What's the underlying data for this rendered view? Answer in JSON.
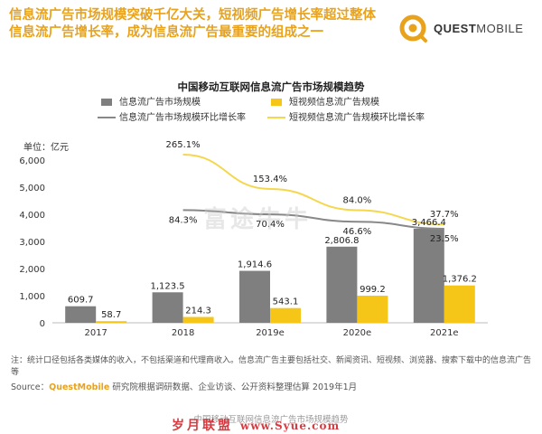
{
  "header": {
    "headline_line1": "信息流广告市场规模突破千亿大关，短视频广告增长率超过整体",
    "headline_line2": "信息流广告增长率，成为信息流广告最重要的组成之一",
    "brand_text_bold": "QUEST",
    "brand_text": "MOBILE"
  },
  "colors": {
    "bar_info": "#7f7f7f",
    "bar_short": "#f5c518",
    "line_info": "#888888",
    "line_short": "#f5d74e",
    "accent": "#e8a21c"
  },
  "chart_data": {
    "type": "bar",
    "title": "中国移动互联网信息流广告市场规模趋势",
    "unit_label": "单位：亿元",
    "categories": [
      "2017",
      "2018",
      "2019e",
      "2020e",
      "2021e"
    ],
    "ylim": [
      0,
      6000
    ],
    "yticks": [
      "0",
      "1,000",
      "2,000",
      "3,000",
      "4,000",
      "5,000",
      "6,000"
    ],
    "ytick_values": [
      0,
      1000,
      2000,
      3000,
      4000,
      5000,
      6000
    ],
    "series": [
      {
        "name": "信息流广告市场规模",
        "kind": "bar",
        "values": [
          609.7,
          1123.5,
          1914.6,
          2806.8,
          3466.4
        ],
        "labels": [
          "609.7",
          "1,123.5",
          "1,914.6",
          "2,806.8",
          "3,466.4"
        ]
      },
      {
        "name": "短视频信息流广告规模",
        "kind": "bar",
        "values": [
          58.7,
          214.3,
          543.1,
          999.2,
          1376.2
        ],
        "labels": [
          "58.7",
          "214.3",
          "543.1",
          "999.2",
          "1,376.2"
        ]
      },
      {
        "name": "信息流广告市场规模环比增长率",
        "kind": "line",
        "values": [
          null,
          84.3,
          70.4,
          46.6,
          23.5
        ],
        "labels": [
          "",
          "84.3%",
          "70.4%",
          "46.6%",
          "23.5%"
        ]
      },
      {
        "name": "短视频信息流广告规模环比增长率",
        "kind": "line",
        "values": [
          null,
          265.1,
          153.4,
          84.0,
          37.7
        ],
        "labels": [
          "",
          "265.1%",
          "153.4%",
          "84.0%",
          "37.7%"
        ]
      }
    ],
    "legend_position": "top",
    "grid": false
  },
  "footer": {
    "note": "注：统计口径包括各类媒体的收入，不包括渠道和代理商收入。信息流广告主要包括社交、新闻资讯、短视频、浏览器、搜索下载中的信息流广告等",
    "source_prefix": "Source：",
    "source_brand": "QuestMobile",
    "source_rest": " 研究院根据调研数据、企业访谈、公开资料整理估算 2019年1月",
    "caption": "中国移动互联网信息流广告市场规模趋势"
  },
  "watermarks": {
    "center": "富途牛牛",
    "bottom": "岁月联盟",
    "bottom_url": "www.Syue.com"
  }
}
